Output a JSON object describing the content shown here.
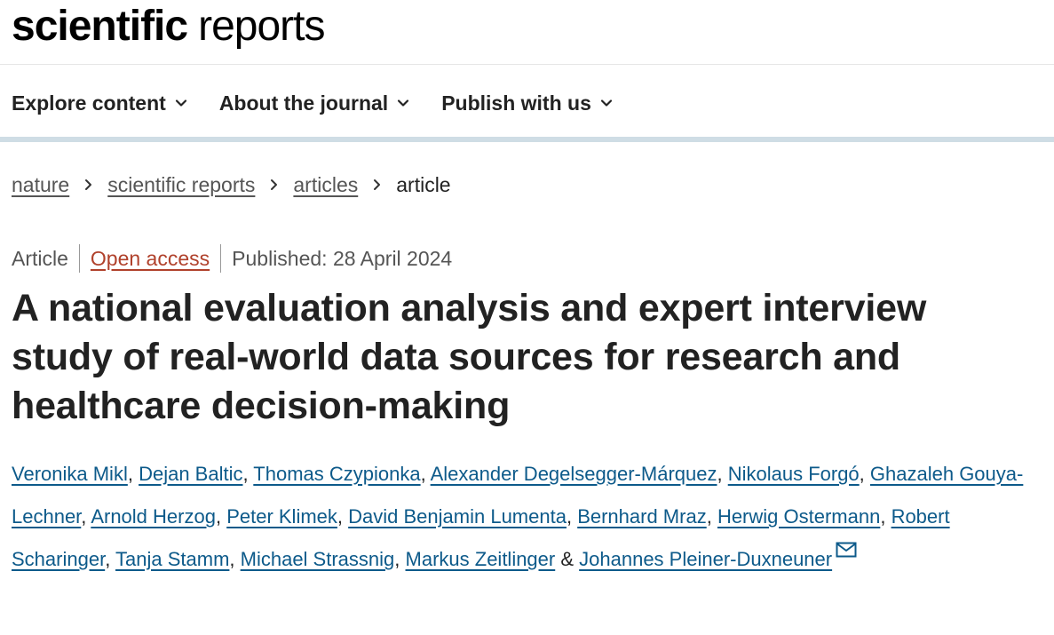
{
  "header": {
    "logo_bold": "scientific",
    "logo_light": "reports"
  },
  "nav": {
    "items": [
      {
        "label": "Explore content",
        "icon": "chevron-down-icon"
      },
      {
        "label": "About the journal",
        "icon": "chevron-down-icon"
      },
      {
        "label": "Publish with us",
        "icon": "chevron-down-icon"
      }
    ]
  },
  "breadcrumb": {
    "items": [
      "nature",
      "scientific reports",
      "articles"
    ],
    "current": "article"
  },
  "article": {
    "type": "Article",
    "access": "Open access",
    "published": "Published: 28 April 2024",
    "title": "A national evaluation analysis and expert interview study of real-world data sources for research and healthcare decision-making",
    "authors": [
      "Veronika Mikl",
      "Dejan Baltic",
      "Thomas Czypionka",
      "Alexander Degelsegger-Márquez",
      "Nikolaus Forgó",
      "Ghazaleh Gouya-Lechner",
      "Arnold Herzog",
      "Peter Klimek",
      "David Benjamin Lumenta",
      "Bernhard Mraz",
      "Herwig Ostermann",
      "Robert Scharinger",
      "Tanja Stamm",
      "Michael Strassnig",
      "Markus Zeitlinger",
      "Johannes Pleiner-Duxneuner"
    ],
    "comma": ", ",
    "ampersand": " & ",
    "contact_icon": "mail-icon"
  },
  "colors": {
    "link": "#0d5a8a",
    "open_access": "#b0412b",
    "nav_bar": "#cfdde5"
  }
}
